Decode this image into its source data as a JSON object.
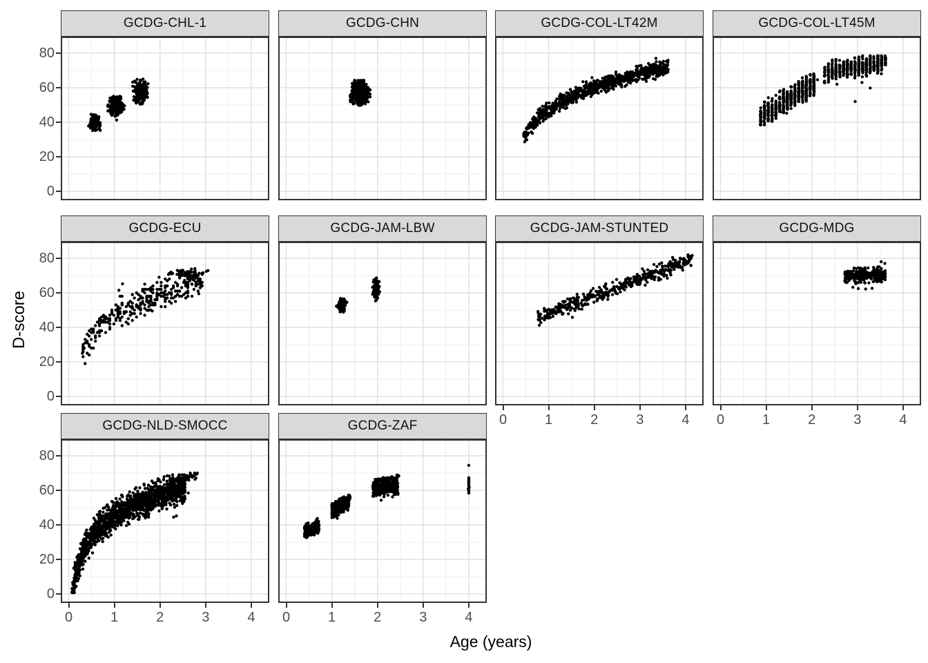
{
  "colors": {
    "background": "#ffffff",
    "strip_bg": "#d9d9d9",
    "strip_border": "#333333",
    "panel_border": "#333333",
    "grid_major": "#e0e0e0",
    "grid_minor": "#efefef",
    "point": "#000000",
    "tick": "#333333",
    "tick_label": "#4d4d4d",
    "axis_title": "#000000"
  },
  "chart_data": {
    "type": "scatter",
    "title": "",
    "xlabel": "Age (years)",
    "ylabel": "D-score",
    "legend": "none",
    "grid": "major+minor",
    "x_ticks": [
      "0",
      "1",
      "2",
      "3",
      "4"
    ],
    "y_ticks": [
      "0",
      "20",
      "40",
      "60",
      "80"
    ],
    "x_major": [
      0,
      1,
      2,
      3,
      4
    ],
    "x_minor": [
      0.5,
      1.5,
      2.5,
      3.5
    ],
    "y_major": [
      0,
      20,
      40,
      60,
      80
    ],
    "y_minor": [
      10,
      30,
      50,
      70
    ],
    "xlim": [
      -0.17,
      4.4
    ],
    "ylim": [
      -5.2,
      89.6
    ],
    "point_radius_px": 2.2,
    "facets": [
      {
        "label": "GCDG-CHL-1",
        "row": 0,
        "col": 0,
        "show_x_axis": false,
        "show_y_axis": true,
        "clusters": [
          {
            "kind": "blob",
            "cx": 0.56,
            "cy": 40,
            "sx": 0.055,
            "sy": 2.0,
            "n": 150
          },
          {
            "kind": "blob",
            "cx": 1.03,
            "cy": 49.3,
            "sx": 0.08,
            "sy": 2.4,
            "n": 260
          },
          {
            "kind": "blob",
            "cx": 1.57,
            "cy": 57.5,
            "sx": 0.07,
            "sy": 2.9,
            "n": 250
          },
          {
            "kind": "points",
            "pts": [
              [
                1.05,
                41.3
              ],
              [
                0.49,
                44.6
              ],
              [
                1.5,
                64.8
              ],
              [
                1.63,
                65
              ],
              [
                1.42,
                52.8
              ]
            ]
          }
        ]
      },
      {
        "label": "GCDG-CHN",
        "row": 0,
        "col": 1,
        "show_x_axis": false,
        "show_y_axis": false,
        "clusters": [
          {
            "kind": "blob",
            "cx": 1.62,
            "cy": 57,
            "sx": 0.09,
            "sy": 3.0,
            "n": 430
          },
          {
            "kind": "points",
            "pts": [
              [
                1.75,
                59
              ],
              [
                1.5,
                51
              ]
            ]
          }
        ]
      },
      {
        "label": "GCDG-COL-LT42M",
        "row": 0,
        "col": 2,
        "show_x_axis": false,
        "show_y_axis": false,
        "clusters": [
          {
            "kind": "log",
            "x0": 0.45,
            "x1": 3.62,
            "a": 47,
            "b": 19,
            "sd": 2.1,
            "ymax": 77,
            "n": 880
          },
          {
            "kind": "points",
            "pts": [
              [
                1.95,
                65.8
              ],
              [
                2.03,
                63.5
              ],
              [
                3.35,
                77
              ],
              [
                0.5,
                31.5
              ],
              [
                1.75,
                63.5
              ]
            ]
          }
        ]
      },
      {
        "label": "GCDG-COL-LT45M",
        "row": 0,
        "col": 3,
        "show_x_axis": false,
        "show_y_axis": false,
        "clusters": [
          {
            "kind": "linear",
            "x0": 0.88,
            "x1": 2.1,
            "a": 30.5,
            "b": 15.5,
            "sd": 3.1,
            "xstep": 0.0833,
            "ymin": 38.5,
            "ymax": 68,
            "n": 530
          },
          {
            "kind": "linear",
            "x0": 2.28,
            "x1": 3.62,
            "a": 59.5,
            "b": 4.2,
            "sd": 2.6,
            "xstep": 0.0833,
            "ymax": 78.5,
            "n": 440
          },
          {
            "kind": "points",
            "pts": [
              [
                2.95,
                52
              ],
              [
                3.28,
                59.8
              ],
              [
                1.32,
                46
              ],
              [
                1.45,
                45.2
              ],
              [
                0.95,
                40.5
              ],
              [
                2.55,
                62
              ],
              [
                3.1,
                63
              ]
            ]
          }
        ]
      },
      {
        "label": "GCDG-ECU",
        "row": 1,
        "col": 0,
        "show_x_axis": false,
        "show_y_axis": true,
        "clusters": [
          {
            "kind": "log",
            "x0": 0.28,
            "x1": 2.92,
            "a": 47,
            "b": 17.5,
            "sd": 4.2,
            "xsnap": 0.045,
            "ysnap": 1,
            "ymax": 72,
            "n": 310
          },
          {
            "kind": "blob",
            "cx": 2.62,
            "cy": 71,
            "sx": 0.18,
            "sy": 1.7,
            "n": 60
          },
          {
            "kind": "points",
            "pts": [
              [
                1.18,
                65.2
              ],
              [
                1.1,
                61.5
              ],
              [
                1.74,
                49.8
              ],
              [
                1.83,
                49.5
              ],
              [
                0.34,
                28
              ],
              [
                0.3,
                25
              ],
              [
                2.9,
                64.8
              ],
              [
                2.85,
                59.5
              ]
            ]
          }
        ]
      },
      {
        "label": "GCDG-JAM-LBW",
        "row": 1,
        "col": 1,
        "show_x_axis": false,
        "show_y_axis": false,
        "clusters": [
          {
            "kind": "blob",
            "cx": 1.22,
            "cy": 53,
            "sx": 0.035,
            "sy": 2.1,
            "n": 85
          },
          {
            "kind": "blob",
            "cx": 1.97,
            "cy": 62.3,
            "sx": 0.032,
            "sy": 2.9,
            "n": 100
          },
          {
            "kind": "points",
            "pts": [
              [
                1.1,
                52.3
              ],
              [
                1.33,
                54.5
              ],
              [
                2.0,
                56.8
              ]
            ]
          }
        ]
      },
      {
        "label": "GCDG-JAM-STUNTED",
        "row": 1,
        "col": 2,
        "show_x_axis": true,
        "show_y_axis": false,
        "clusters": [
          {
            "kind": "linear",
            "x0": 0.75,
            "x1": 4.15,
            "a": 38.3,
            "b": 10,
            "sd": 2.1,
            "ymax": 82,
            "n": 430
          },
          {
            "kind": "points",
            "pts": [
              [
                2.6,
                63.2
              ],
              [
                2.95,
                64.8
              ],
              [
                1.52,
                45.8
              ],
              [
                3.6,
                68.5
              ],
              [
                2.3,
                58
              ],
              [
                0.78,
                46.5
              ]
            ]
          }
        ]
      },
      {
        "label": "GCDG-MDG",
        "row": 1,
        "col": 3,
        "show_x_axis": true,
        "show_y_axis": false,
        "clusters": [
          {
            "kind": "linear",
            "x0": 2.72,
            "x1": 3.62,
            "a": 66,
            "b": 1.3,
            "sd": 1.9,
            "ymin": 63.5,
            "ymax": 78,
            "n": 310
          },
          {
            "kind": "points",
            "pts": [
              [
                3.02,
                62.5
              ],
              [
                3.18,
                62.2
              ],
              [
                3.32,
                62.6
              ],
              [
                2.9,
                63.2
              ],
              [
                3.52,
                78
              ],
              [
                3.6,
                77
              ],
              [
                2.75,
                66
              ]
            ]
          }
        ]
      },
      {
        "label": "GCDG-NLD-SMOCC",
        "row": 2,
        "col": 0,
        "show_x_axis": true,
        "show_y_axis": true,
        "clusters": [
          {
            "kind": "log",
            "x0": 0.07,
            "x1": 2.55,
            "a": 45,
            "b": 18,
            "sd": 4.0,
            "ymin": 0.8,
            "ymax": 69,
            "n": 1400
          },
          {
            "kind": "linear",
            "x0": 2.2,
            "x1": 2.82,
            "a": 45.5,
            "b": 8.5,
            "sd": 1.1,
            "ymax": 70,
            "n": 70
          },
          {
            "kind": "points",
            "pts": [
              [
                2.32,
                50.2
              ],
              [
                2.45,
                56
              ],
              [
                2.52,
                55.5
              ],
              [
                2.62,
                58.5
              ],
              [
                2.78,
                69.5
              ],
              [
                2.3,
                44.5
              ],
              [
                2.36,
                45.2
              ],
              [
                1.68,
                44
              ],
              [
                1.75,
                44.5
              ]
            ]
          }
        ]
      },
      {
        "label": "GCDG-ZAF",
        "row": 2,
        "col": 1,
        "show_x_axis": true,
        "show_y_axis": false,
        "clusters": [
          {
            "kind": "linear",
            "x0": 0.4,
            "x1": 0.72,
            "a": 30.5,
            "b": 13,
            "sd": 1.8,
            "n": 300
          },
          {
            "kind": "linear",
            "x0": 1.0,
            "x1": 1.38,
            "a": 36.5,
            "b": 12,
            "sd": 1.9,
            "n": 300
          },
          {
            "kind": "linear",
            "x0": 1.26,
            "x1": 1.4,
            "a": 42,
            "b": 10,
            "sd": 0.6,
            "n": 40
          },
          {
            "kind": "linear",
            "x0": 1.9,
            "x1": 2.45,
            "a": 51.5,
            "b": 4.5,
            "sd": 2.0,
            "n": 340
          },
          {
            "kind": "linear",
            "x0": 1.93,
            "x1": 2.47,
            "a": 55.5,
            "b": 5,
            "sd": 0.6,
            "n": 70
          },
          {
            "kind": "points",
            "pts": [
              [
                4.0,
                74.5
              ],
              [
                4.0,
                67.3
              ],
              [
                4.0,
                66.5
              ],
              [
                4.0,
                65.7
              ],
              [
                4.0,
                64.9
              ],
              [
                4.0,
                64.1
              ],
              [
                4.0,
                63.3
              ],
              [
                4.0,
                62.5
              ],
              [
                4.01,
                61.7
              ],
              [
                3.99,
                60.9
              ],
              [
                4.0,
                60.1
              ],
              [
                4.0,
                59.3
              ],
              [
                4.0,
                58.4
              ],
              [
                1.04,
                46.3
              ],
              [
                1.1,
                44.8
              ],
              [
                1.2,
                47.2
              ],
              [
                2.08,
                54.3
              ],
              [
                2.33,
                56.2
              ],
              [
                0.52,
                34.3
              ],
              [
                1.12,
                43.8
              ]
            ]
          }
        ]
      }
    ]
  }
}
